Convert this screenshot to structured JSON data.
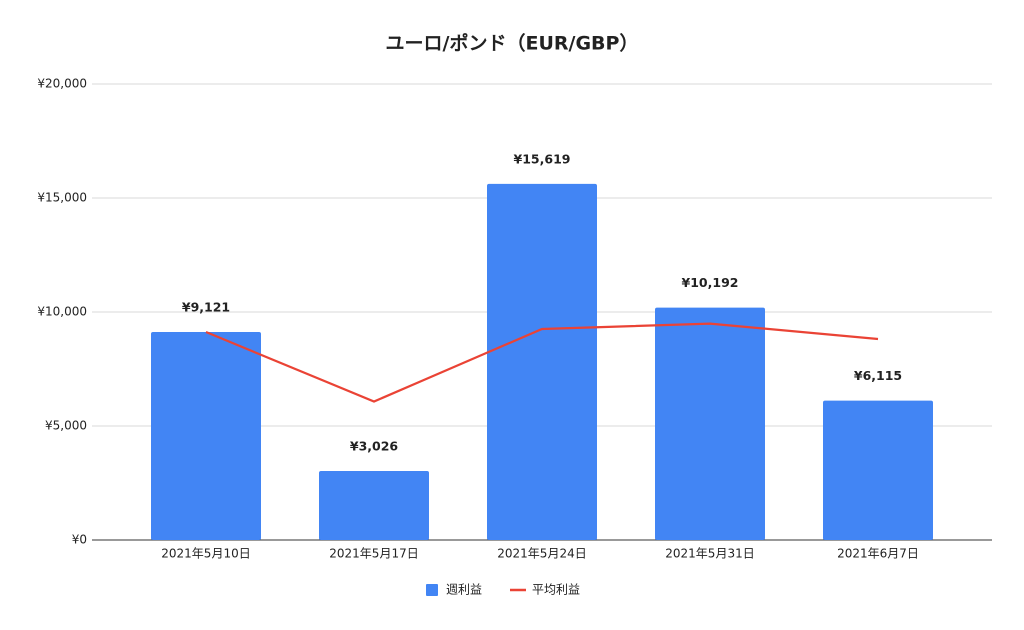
{
  "chart_data": {
    "type": "bar",
    "title": "ユーロ/ポンド（EUR/GBP）",
    "categories": [
      "2021年5月10日",
      "2021年5月17日",
      "2021年5月24日",
      "2021年5月31日",
      "2021年6月7日"
    ],
    "series": [
      {
        "name": "週利益",
        "type": "bar",
        "color": "#4285f4",
        "values": [
          9121,
          3026,
          15619,
          10192,
          6115
        ],
        "value_labels": [
          "¥9,121",
          "¥3,026",
          "¥15,619",
          "¥10,192",
          "¥6,115"
        ]
      },
      {
        "name": "平均利益",
        "type": "line",
        "color": "#ea4335",
        "values": [
          9121,
          6074,
          9255,
          9490,
          8815
        ]
      }
    ],
    "ylim": [
      0,
      20000
    ],
    "yticks": [
      {
        "value": 0,
        "label": "¥0"
      },
      {
        "value": 5000,
        "label": "¥5,000"
      },
      {
        "value": 10000,
        "label": "¥10,000"
      },
      {
        "value": 15000,
        "label": "¥15,000"
      },
      {
        "value": 20000,
        "label": "¥20,000"
      }
    ],
    "grid": true,
    "legend": "bottom"
  }
}
